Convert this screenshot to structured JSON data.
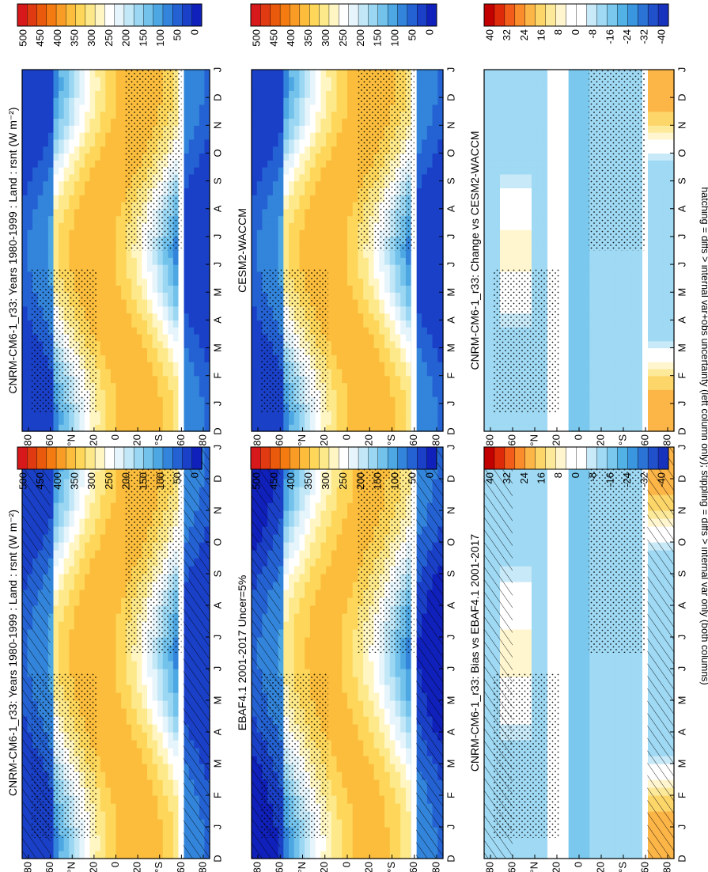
{
  "figure": {
    "footnote": "hatching = diffs > internal var+obs uncertainty (left column only); stippling = diffs > internal var only (both columns)",
    "orientation": "rotated 90° clockwise; month axis runs along page height",
    "variable": "Land : rsnt (W m⁻²)"
  },
  "colors": {
    "abs_scale": [
      "#d7191c",
      "#e03a12",
      "#ea5a0d",
      "#f47b12",
      "#f99c26",
      "#fcbd3c",
      "#fdd65a",
      "#fde98a",
      "#fff6c4",
      "#ffffff",
      "#e6f4fb",
      "#c2e7f7",
      "#9bd7f2",
      "#73c2ec",
      "#4da7e3",
      "#3385db",
      "#2462d3",
      "#1a40c8",
      "#1020bb"
    ],
    "diff_scale": [
      "#c20000",
      "#df2a0a",
      "#f25d1a",
      "#fa8c2c",
      "#fcb547",
      "#fdd66a",
      "#fde99a",
      "#fff6cf",
      "#ffffff",
      "#ffffff",
      "#c8e9f8",
      "#9fd9f3",
      "#7ac8ee",
      "#52b2e6",
      "#3a96de",
      "#2c73d6",
      "#2150cb",
      "#1733bd"
    ]
  },
  "chart_data": [
    {
      "type": "heatmap",
      "panel": "left-top",
      "title": "CNRM-CM6-1_r33: Years 1980-1999 : Land : rsnt (W m⁻²)",
      "months": [
        "D",
        "J",
        "F",
        "M",
        "A",
        "M",
        "J",
        "J",
        "A",
        "S",
        "O",
        "N",
        "D",
        "J"
      ],
      "lat_ticks": [
        "80",
        "60",
        "°N",
        "20",
        "0",
        "20",
        "°S",
        "60",
        "80"
      ],
      "colorbar_ticks": [
        "500",
        "450",
        "400",
        "350",
        "300",
        "250",
        "200",
        "150",
        "100",
        "50",
        "0"
      ],
      "zlim": [
        0,
        500
      ],
      "overlay": [
        "hatching",
        "stippling"
      ]
    },
    {
      "type": "heatmap",
      "panel": "left-middle",
      "title": "EBAF4.1 2001-2017 Uncer=5%",
      "months": [
        "D",
        "J",
        "F",
        "M",
        "A",
        "M",
        "J",
        "J",
        "A",
        "S",
        "O",
        "N",
        "D",
        "J"
      ],
      "lat_ticks": [
        "80",
        "60",
        "°N",
        "20",
        "0",
        "20",
        "°S",
        "60",
        "80"
      ],
      "colorbar_ticks": [
        "500",
        "450",
        "400",
        "350",
        "300",
        "250",
        "200",
        "150",
        "100",
        "50",
        "0"
      ],
      "zlim": [
        0,
        500
      ],
      "overlay": [
        "hatching",
        "stippling"
      ]
    },
    {
      "type": "heatmap",
      "panel": "left-bottom",
      "title": "CNRM-CM6-1_r33: Bias vs EBAF4.1 2001-2017",
      "months": [
        "D",
        "J",
        "F",
        "M",
        "A",
        "M",
        "J",
        "J",
        "A",
        "S",
        "O",
        "N",
        "D",
        "J"
      ],
      "lat_ticks": [
        "80",
        "60",
        "°N",
        "20",
        "0",
        "20",
        "°S",
        "60",
        "80"
      ],
      "colorbar_ticks": [
        "40",
        "32",
        "24",
        "16",
        "8",
        "0",
        "-8",
        "-16",
        "-24",
        "-32",
        "-40"
      ],
      "zlim": [
        -40,
        40
      ],
      "overlay": [
        "hatching",
        "stippling"
      ]
    },
    {
      "type": "heatmap",
      "panel": "right-top",
      "title": "CNRM-CM6-1_r33: Years 1980-1999 : Land : rsnt (W m⁻²)",
      "months": [
        "D",
        "J",
        "F",
        "M",
        "A",
        "M",
        "J",
        "J",
        "A",
        "S",
        "O",
        "N",
        "D",
        "J"
      ],
      "lat_ticks": [
        "80",
        "60",
        "°N",
        "20",
        "0",
        "20",
        "°S",
        "60",
        "80"
      ],
      "colorbar_ticks": [
        "500",
        "450",
        "400",
        "350",
        "300",
        "250",
        "200",
        "150",
        "100",
        "50",
        "0"
      ],
      "zlim": [
        0,
        500
      ],
      "overlay": [
        "stippling"
      ]
    },
    {
      "type": "heatmap",
      "panel": "right-middle",
      "title": "CESM2-WACCM",
      "months": [
        "D",
        "J",
        "F",
        "M",
        "A",
        "M",
        "J",
        "J",
        "A",
        "S",
        "O",
        "N",
        "D",
        "J"
      ],
      "lat_ticks": [
        "80",
        "60",
        "°N",
        "20",
        "0",
        "20",
        "°S",
        "60",
        "80"
      ],
      "colorbar_ticks": [
        "500",
        "450",
        "400",
        "350",
        "300",
        "250",
        "200",
        "150",
        "100",
        "50",
        "0"
      ],
      "zlim": [
        0,
        500
      ],
      "overlay": [
        "stippling"
      ]
    },
    {
      "type": "heatmap",
      "panel": "right-bottom",
      "title": "CNRM-CM6-1_r33: Change vs CESM2-WACCM",
      "months": [
        "D",
        "J",
        "F",
        "M",
        "A",
        "M",
        "J",
        "J",
        "A",
        "S",
        "O",
        "N",
        "D",
        "J"
      ],
      "lat_ticks": [
        "80",
        "60",
        "°N",
        "20",
        "0",
        "20",
        "°S",
        "60",
        "80"
      ],
      "colorbar_ticks": [
        "40",
        "32",
        "24",
        "16",
        "8",
        "0",
        "-8",
        "-16",
        "-24",
        "-32",
        "-40"
      ],
      "zlim": [
        -40,
        40
      ],
      "overlay": [
        "stippling"
      ]
    }
  ]
}
